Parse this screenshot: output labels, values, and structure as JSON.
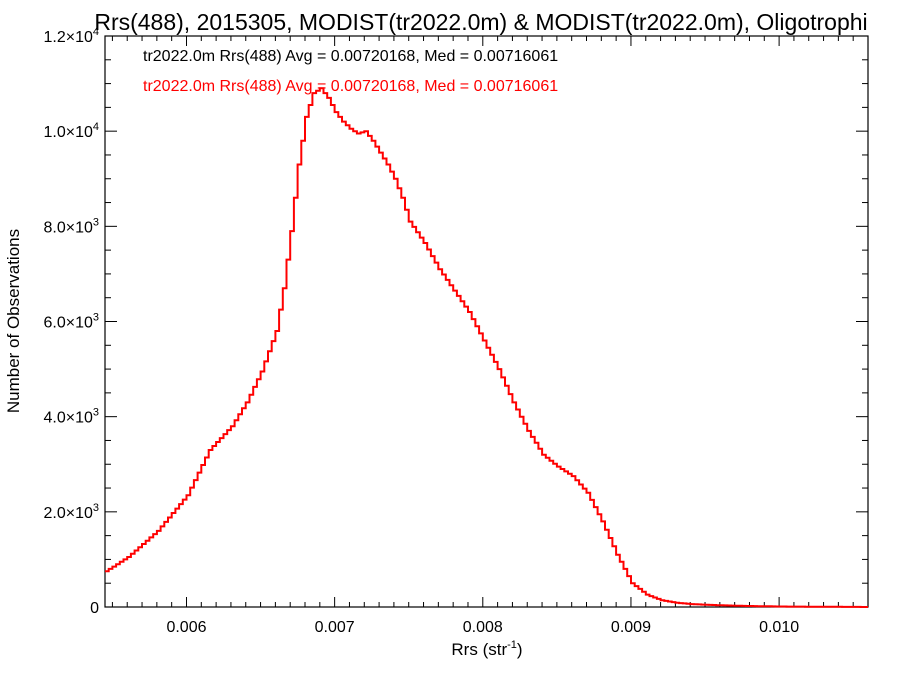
{
  "chart_data": {
    "type": "histogram",
    "title": "Rrs(488), 2015305, MODIST(tr2022.0m) & MODIST(tr2022.0m), Oligotrophi",
    "xlabel": "Rrs (str",
    "xlabel_sup": "-1",
    "xlabel_end": ")",
    "ylabel": "Number of Observations",
    "xlim": [
      0.00545,
      0.0106
    ],
    "ylim": [
      0,
      12000
    ],
    "x_ticks": [
      {
        "value": 0.006,
        "label": "0.006"
      },
      {
        "value": 0.007,
        "label": "0.007"
      },
      {
        "value": 0.008,
        "label": "0.008"
      },
      {
        "value": 0.009,
        "label": "0.009"
      },
      {
        "value": 0.01,
        "label": "0.010"
      }
    ],
    "y_ticks": [
      {
        "value": 0,
        "label": "0",
        "exp": ""
      },
      {
        "value": 2000,
        "label": "2.0×10",
        "exp": "3"
      },
      {
        "value": 4000,
        "label": "4.0×10",
        "exp": "3"
      },
      {
        "value": 6000,
        "label": "6.0×10",
        "exp": "3"
      },
      {
        "value": 8000,
        "label": "8.0×10",
        "exp": "3"
      },
      {
        "value": 10000,
        "label": "1.0×10",
        "exp": "4"
      },
      {
        "value": 12000,
        "label": "1.2×10",
        "exp": "4"
      }
    ],
    "annotations": [
      {
        "text": "tr2022.0m Rrs(488) Avg = 0.00720168, Med = 0.00716061",
        "color": "#000000"
      },
      {
        "text": "tr2022.0m Rrs(488) Avg = 0.00720168, Med = 0.00716061",
        "color": "#ff0000"
      }
    ],
    "series": [
      {
        "color": "#ff0000",
        "x": [
          0.00545,
          0.0056,
          0.0058,
          0.006,
          0.00615,
          0.0063,
          0.0064,
          0.0065,
          0.0066,
          0.00665,
          0.0067,
          0.00675,
          0.0068,
          0.00685,
          0.0069,
          0.00695,
          0.007,
          0.00705,
          0.0071,
          0.00715,
          0.0072,
          0.00725,
          0.0073,
          0.00735,
          0.0074,
          0.00745,
          0.0075,
          0.0076,
          0.0077,
          0.0078,
          0.0079,
          0.008,
          0.0081,
          0.0082,
          0.0083,
          0.0084,
          0.0085,
          0.0086,
          0.0087,
          0.0088,
          0.0089,
          0.009,
          0.0091,
          0.0092,
          0.0093,
          0.0094,
          0.0096,
          0.0098,
          0.01,
          0.0106
        ],
        "y": [
          750,
          1050,
          1600,
          2350,
          3300,
          3800,
          4300,
          4950,
          5800,
          6700,
          7900,
          9300,
          10300,
          10800,
          10900,
          10700,
          10400,
          10200,
          10050,
          9950,
          10000,
          9800,
          9550,
          9300,
          9000,
          8600,
          8100,
          7650,
          7100,
          6650,
          6200,
          5600,
          5000,
          4300,
          3700,
          3200,
          2950,
          2750,
          2400,
          1800,
          1100,
          500,
          260,
          140,
          90,
          60,
          35,
          20,
          10,
          0
        ]
      }
    ]
  }
}
